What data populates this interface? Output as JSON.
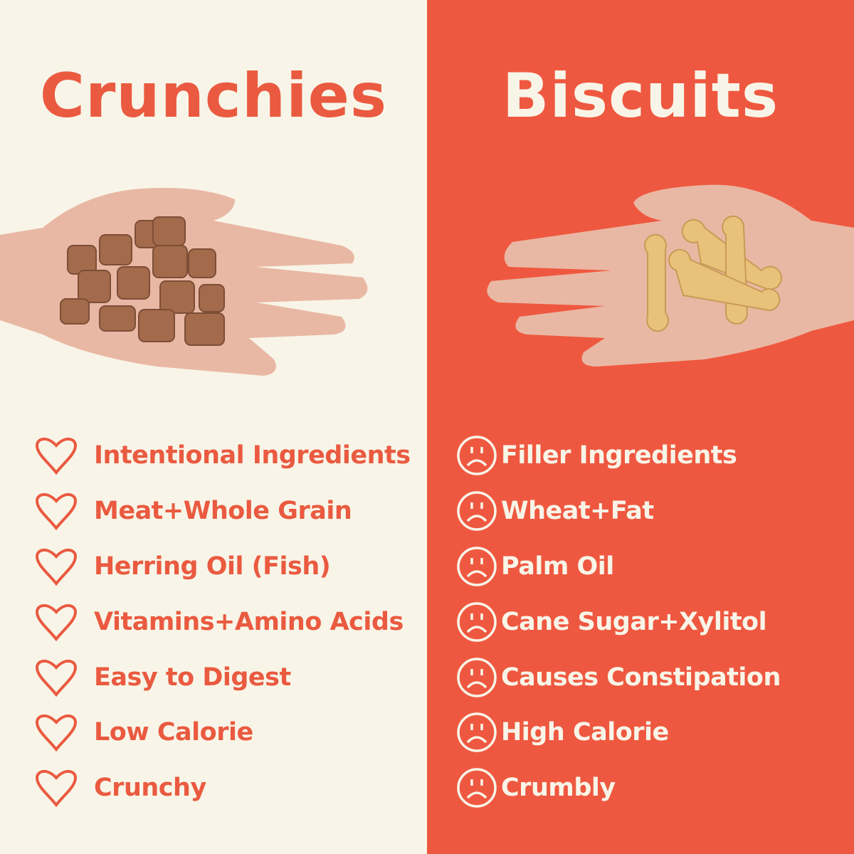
{
  "left": {
    "title": "Crunchies",
    "icon": "heart-outline-icon",
    "items": [
      {
        "label": "Intentional Ingredients"
      },
      {
        "label": "Meat+Whole Grain"
      },
      {
        "label": "Herring Oil (Fish)"
      },
      {
        "label": "Vitamins+Amino Acids"
      },
      {
        "label": "Easy to Digest"
      },
      {
        "label": "Low Calorie"
      },
      {
        "label": "Crunchy"
      }
    ]
  },
  "right": {
    "title": "Biscuits",
    "icon": "sad-face-icon",
    "items": [
      {
        "label": "Filler Ingredients"
      },
      {
        "label": "Wheat+Fat"
      },
      {
        "label": "Palm Oil"
      },
      {
        "label": "Cane Sugar+Xylitol"
      },
      {
        "label": "Causes Constipation"
      },
      {
        "label": "High Calorie"
      },
      {
        "label": "Crumbly"
      }
    ]
  },
  "colors": {
    "cream": "#f8f5e8",
    "red": "#ef5840",
    "text_red": "#ea5a40"
  }
}
